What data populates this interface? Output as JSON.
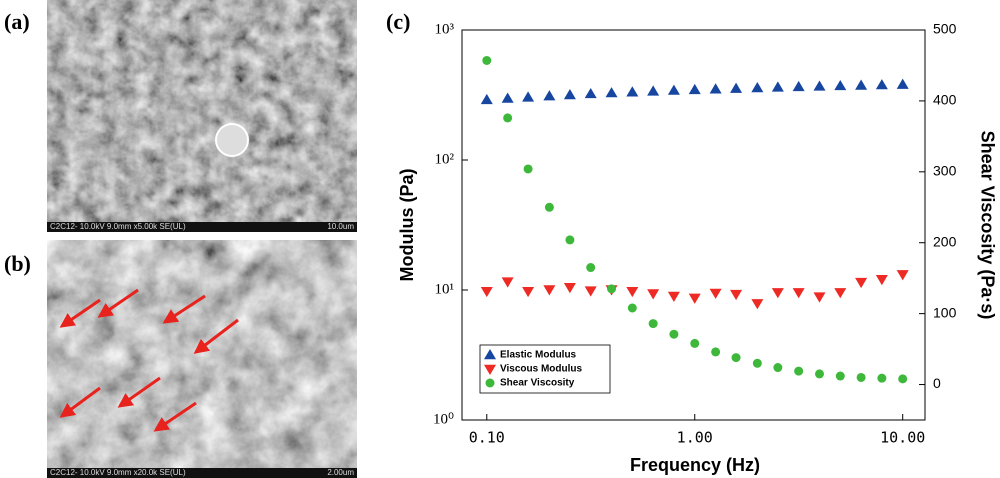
{
  "panels": [
    {
      "label": "(a)",
      "caption": "C2C12- 10.0kV 9.0mm x5.00k SE(UL)",
      "scale": "10.0um"
    },
    {
      "label": "(b)",
      "caption": "C2C12- 10.0kV 9.0mm x20.0k SE(UL)",
      "scale": "2.00um"
    }
  ],
  "chart_data": {
    "type": "scatter",
    "label": "(c)",
    "x_label": "Frequency (Hz)",
    "y_label": "Modulus (Pa)",
    "y2_label": "Shear Viscosity (Pa·s)",
    "x": [
      0.1,
      0.126,
      0.158,
      0.2,
      0.251,
      0.316,
      0.398,
      0.501,
      0.631,
      0.794,
      1,
      1.26,
      1.58,
      2,
      2.51,
      3.16,
      3.98,
      5.01,
      6.31,
      7.94,
      10
    ],
    "xlog": true,
    "ylog": true,
    "xlim": [
      0.076,
      12.8
    ],
    "xticks": [
      {
        "value": 0.1,
        "label": "0.10"
      },
      {
        "value": 1,
        "label": "1.00"
      },
      {
        "value": 10,
        "label": "10.00"
      }
    ],
    "ylim": [
      1,
      1000
    ],
    "yticks": [
      {
        "value": 1,
        "label": "10⁰"
      },
      {
        "value": 10,
        "label": "10¹"
      },
      {
        "value": 100,
        "label": "10²"
      },
      {
        "value": 1000,
        "label": "10³"
      }
    ],
    "y2lim": [
      -50,
      500
    ],
    "y2ticks": [
      0,
      100,
      200,
      300,
      400,
      500
    ],
    "legend": "lower-left",
    "series": [
      {
        "name": "Elastic Modulus",
        "color": "#1646a0",
        "marker": "triangle-up",
        "values": [
          290,
          297,
          303,
          310,
          316,
          322,
          327,
          332,
          337,
          342,
          346,
          350,
          354,
          358,
          362,
          365,
          368,
          371,
          374,
          377,
          380
        ]
      },
      {
        "name": "Viscous Modulus",
        "color": "#ee2a24",
        "marker": "triangle-down",
        "values": [
          9.8,
          11.6,
          9.8,
          10.1,
          10.5,
          9.9,
          10.1,
          9.8,
          9.4,
          9.0,
          8.7,
          9.5,
          9.3,
          7.9,
          9.6,
          9.6,
          8.9,
          9.6,
          11.5,
          12.1,
          13.2
        ]
      },
      {
        "name": "Shear Viscosity",
        "color": "#3db83a",
        "marker": "circle",
        "axis": "y2",
        "values": [
          457,
          376,
          304,
          250,
          204,
          165,
          135,
          108,
          86,
          71,
          58,
          46,
          38,
          30,
          24,
          19,
          15,
          12,
          10,
          9,
          8
        ]
      }
    ]
  }
}
